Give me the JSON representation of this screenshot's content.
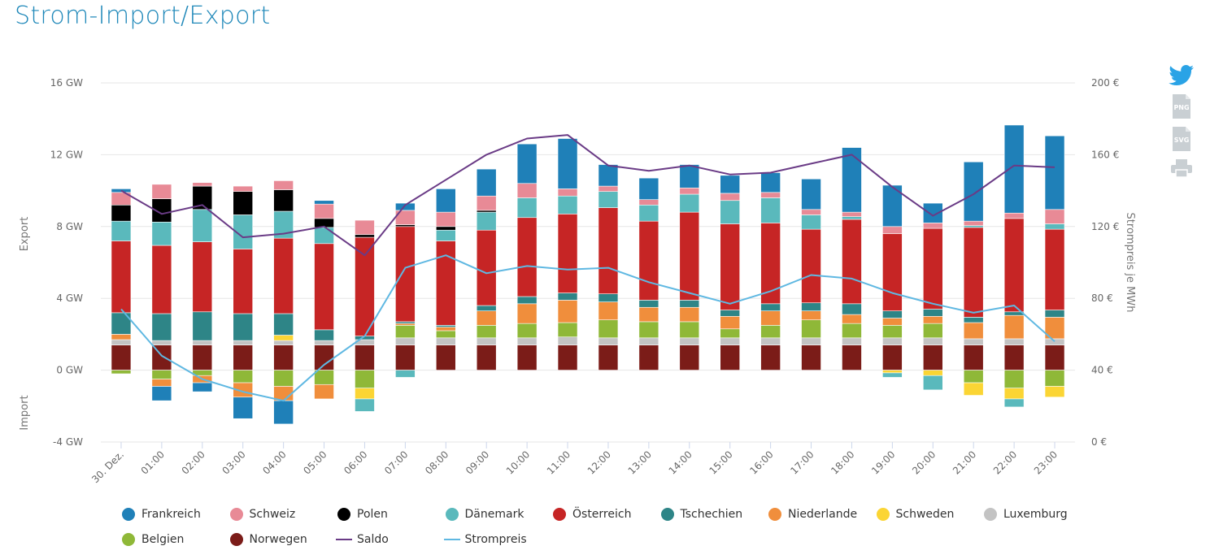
{
  "page_title": "Strom-Import/Export",
  "toolbar": {
    "twitter_icon": "twitter-icon",
    "png_label": "PNG",
    "svg_label": "SVG",
    "print_icon": "print-icon"
  },
  "chart_data": {
    "type": "bar",
    "stacked": true,
    "title": "Strom-Import/Export",
    "categories": [
      "30. Dez.",
      "01:00",
      "02:00",
      "03:00",
      "04:00",
      "05:00",
      "06:00",
      "07:00",
      "08:00",
      "09:00",
      "10:00",
      "11:00",
      "12:00",
      "13:00",
      "14:00",
      "15:00",
      "16:00",
      "17:00",
      "18:00",
      "19:00",
      "20:00",
      "21:00",
      "22:00",
      "23:00"
    ],
    "y_left": {
      "ticks": [
        "16 GW",
        "12 GW",
        "8 GW",
        "4 GW",
        "0 GW",
        "-4 GW"
      ],
      "min": -4,
      "max": 16,
      "label_top": "Export",
      "label_bottom": "Import",
      "unit": "GW"
    },
    "y_right": {
      "ticks": [
        "200 €",
        "160 €",
        "120 €",
        "80 €",
        "40 €",
        "0 €"
      ],
      "min": 0,
      "max": 200,
      "label": "Strompreis je MWh",
      "unit": "€"
    },
    "series": [
      {
        "name": "Norwegen",
        "color": "#7b1c18",
        "values": [
          1.4,
          1.4,
          1.4,
          1.4,
          1.4,
          1.4,
          1.4,
          1.4,
          1.4,
          1.4,
          1.4,
          1.4,
          1.4,
          1.4,
          1.4,
          1.4,
          1.4,
          1.4,
          1.4,
          1.4,
          1.4,
          1.4,
          1.4,
          1.4
        ]
      },
      {
        "name": "Luxemburg",
        "color": "#c3c3c3",
        "values": [
          0.3,
          0.25,
          0.25,
          0.25,
          0.25,
          0.25,
          0.3,
          0.4,
          0.4,
          0.4,
          0.4,
          0.45,
          0.4,
          0.4,
          0.4,
          0.4,
          0.4,
          0.4,
          0.4,
          0.4,
          0.4,
          0.35,
          0.35,
          0.35
        ]
      },
      {
        "name": "Belgien",
        "color": "#8fb838",
        "values": [
          -0.2,
          -0.5,
          -0.3,
          -0.7,
          -0.9,
          -0.8,
          -1.0,
          0.7,
          0.4,
          0.7,
          0.8,
          0.8,
          1.0,
          0.9,
          0.9,
          0.5,
          0.7,
          1.0,
          0.8,
          0.7,
          0.8,
          -0.7,
          -1.0,
          -0.9
        ]
      },
      {
        "name": "Schweden",
        "color": "#fbd534",
        "values": [
          0,
          0,
          0,
          0,
          0.3,
          0,
          -0.6,
          0,
          0,
          0,
          0,
          0,
          0,
          0,
          0,
          0,
          0,
          0,
          0,
          -0.15,
          -0.3,
          -0.7,
          -0.6,
          -0.6
        ]
      },
      {
        "name": "Niederlande",
        "color": "#f08e3c",
        "values": [
          0.3,
          -0.4,
          -0.4,
          -0.8,
          -0.8,
          -0.8,
          0,
          0.1,
          0.2,
          0.8,
          1.1,
          1.25,
          1.0,
          0.8,
          0.8,
          0.7,
          0.8,
          0.5,
          0.5,
          0.4,
          0.4,
          0.9,
          1.3,
          1.2
        ]
      },
      {
        "name": "Tschechien",
        "color": "#2e8587",
        "values": [
          1.2,
          1.5,
          1.6,
          1.5,
          1.2,
          0.6,
          0.2,
          0.1,
          0.1,
          0.3,
          0.4,
          0.4,
          0.45,
          0.4,
          0.4,
          0.35,
          0.4,
          0.45,
          0.6,
          0.4,
          0.4,
          0.3,
          0.2,
          0.4
        ]
      },
      {
        "name": "Österreich",
        "color": "#c62525",
        "values": [
          4.0,
          3.8,
          3.9,
          3.6,
          4.2,
          4.8,
          5.5,
          5.3,
          4.7,
          4.2,
          4.4,
          4.4,
          4.8,
          4.4,
          4.9,
          4.8,
          4.5,
          4.1,
          4.7,
          4.3,
          4.5,
          5.0,
          5.2,
          4.5
        ]
      },
      {
        "name": "Dänemark",
        "color": "#5ab9bc",
        "values": [
          1.1,
          1.3,
          1.8,
          1.9,
          1.5,
          0.9,
          -0.7,
          -0.4,
          0.6,
          1.0,
          1.1,
          1.0,
          0.9,
          0.9,
          1.0,
          1.3,
          1.4,
          0.8,
          0.15,
          -0.25,
          -0.8,
          0.1,
          -0.45,
          0.3
        ]
      },
      {
        "name": "Polen",
        "color": "#000000",
        "values": [
          0.9,
          1.3,
          1.3,
          1.3,
          1.2,
          0.5,
          0.15,
          0.1,
          0.2,
          0.1,
          0,
          0,
          0,
          0,
          0,
          0,
          0,
          0,
          0,
          0,
          0,
          0,
          0,
          0
        ]
      },
      {
        "name": "Schweiz",
        "color": "#e88a96",
        "values": [
          0.7,
          0.8,
          0.2,
          0.3,
          0.5,
          0.8,
          0.8,
          0.8,
          0.8,
          0.8,
          0.8,
          0.4,
          0.3,
          0.3,
          0.35,
          0.4,
          0.3,
          0.3,
          0.25,
          0.4,
          0.3,
          0.25,
          0.3,
          0.8
        ]
      },
      {
        "name": "Frankreich",
        "color": "#1f80b8",
        "values": [
          0.2,
          -0.8,
          -0.5,
          -1.2,
          -1.3,
          0.2,
          0,
          0.4,
          1.3,
          1.5,
          2.2,
          2.8,
          1.2,
          1.2,
          1.3,
          1.0,
          1.1,
          1.7,
          3.6,
          2.3,
          1.1,
          3.3,
          4.9,
          4.1
        ]
      }
    ],
    "lines": [
      {
        "name": "Saldo",
        "color": "#6a3b86",
        "axis": "left",
        "values": [
          10.0,
          8.7,
          9.2,
          7.4,
          7.6,
          8.0,
          6.4,
          9.2,
          10.6,
          12.0,
          12.9,
          13.1,
          11.4,
          11.1,
          11.4,
          10.9,
          11.0,
          11.5,
          12.0,
          10.2,
          8.6,
          9.8,
          11.4,
          11.3
        ]
      },
      {
        "name": "Strompreis",
        "color": "#5fb8e2",
        "axis": "right",
        "values": [
          74,
          48,
          35,
          28,
          23,
          43,
          59,
          97,
          104,
          94,
          98,
          96,
          97,
          89,
          83,
          77,
          84,
          93,
          91,
          83,
          77,
          72,
          76,
          56
        ]
      }
    ],
    "legend": [
      "Frankreich",
      "Schweiz",
      "Polen",
      "Dänemark",
      "Österreich",
      "Tschechien",
      "Niederlande",
      "Schweden",
      "Luxemburg",
      "Belgien",
      "Norwegen",
      "Saldo",
      "Strompreis"
    ],
    "legend_position": "bottom",
    "grid": true
  }
}
